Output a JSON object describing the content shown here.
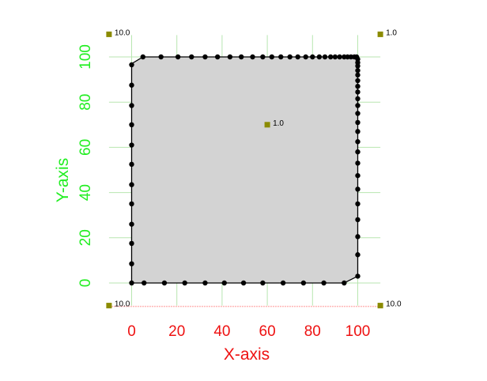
{
  "chart_data": {
    "type": "scatter",
    "title": "",
    "xlabel": "X-axis",
    "ylabel": "Y-axis",
    "xlim": [
      -10,
      110
    ],
    "ylim": [
      -10,
      110
    ],
    "xticks": [
      "0",
      "20",
      "40",
      "60",
      "80",
      "100"
    ],
    "yticks": [
      "0",
      "20",
      "40",
      "60",
      "80",
      "100"
    ],
    "grid": true,
    "colors": {
      "fill": "#d3d3d3",
      "outline": "#000000",
      "points": "#000000",
      "markers": "#8b8b00",
      "grid": "#b8e6b0",
      "x_text": "#ee1111",
      "y_text": "#22ee22",
      "bottom_axis": "#ffb4b4"
    },
    "boundary_x": [
      0,
      0,
      5,
      100,
      100,
      94,
      0
    ],
    "boundary_y": [
      0,
      97,
      100,
      100,
      3,
      0,
      0
    ],
    "points": [
      {
        "x": 0,
        "y": 0
      },
      {
        "x": 0,
        "y": 8.5
      },
      {
        "x": 0,
        "y": 17.5
      },
      {
        "x": 0,
        "y": 26
      },
      {
        "x": 0,
        "y": 35
      },
      {
        "x": 0,
        "y": 43.5
      },
      {
        "x": 0,
        "y": 52.5
      },
      {
        "x": 0,
        "y": 61
      },
      {
        "x": 0,
        "y": 70
      },
      {
        "x": 0,
        "y": 78.5
      },
      {
        "x": 0,
        "y": 87.5
      },
      {
        "x": 0,
        "y": 96.5
      },
      {
        "x": 5,
        "y": 100
      },
      {
        "x": 13,
        "y": 100
      },
      {
        "x": 20.5,
        "y": 100
      },
      {
        "x": 26.5,
        "y": 100
      },
      {
        "x": 32.5,
        "y": 100
      },
      {
        "x": 38,
        "y": 100
      },
      {
        "x": 43.5,
        "y": 100
      },
      {
        "x": 48.5,
        "y": 100
      },
      {
        "x": 53.5,
        "y": 100
      },
      {
        "x": 58,
        "y": 100
      },
      {
        "x": 62,
        "y": 100
      },
      {
        "x": 66,
        "y": 100
      },
      {
        "x": 70,
        "y": 100
      },
      {
        "x": 73.5,
        "y": 100
      },
      {
        "x": 77,
        "y": 100
      },
      {
        "x": 80,
        "y": 100
      },
      {
        "x": 83,
        "y": 100
      },
      {
        "x": 85.5,
        "y": 100
      },
      {
        "x": 88,
        "y": 100
      },
      {
        "x": 90,
        "y": 100
      },
      {
        "x": 92,
        "y": 100
      },
      {
        "x": 94,
        "y": 100
      },
      {
        "x": 95.5,
        "y": 100
      },
      {
        "x": 97,
        "y": 100
      },
      {
        "x": 98.5,
        "y": 100
      },
      {
        "x": 99.5,
        "y": 100
      },
      {
        "x": 100,
        "y": 99
      },
      {
        "x": 100,
        "y": 97.5
      },
      {
        "x": 100,
        "y": 96
      },
      {
        "x": 100,
        "y": 94
      },
      {
        "x": 100,
        "y": 92
      },
      {
        "x": 100,
        "y": 89.5
      },
      {
        "x": 100,
        "y": 87
      },
      {
        "x": 100,
        "y": 84.5
      },
      {
        "x": 100,
        "y": 81.5
      },
      {
        "x": 100,
        "y": 78.5
      },
      {
        "x": 100,
        "y": 75
      },
      {
        "x": 100,
        "y": 71
      },
      {
        "x": 100,
        "y": 67
      },
      {
        "x": 100,
        "y": 62.5
      },
      {
        "x": 100,
        "y": 58
      },
      {
        "x": 100,
        "y": 53
      },
      {
        "x": 100,
        "y": 47.5
      },
      {
        "x": 100,
        "y": 41.5
      },
      {
        "x": 100,
        "y": 35
      },
      {
        "x": 100,
        "y": 28
      },
      {
        "x": 100,
        "y": 20.5
      },
      {
        "x": 100,
        "y": 12.5
      },
      {
        "x": 100,
        "y": 3
      },
      {
        "x": 94,
        "y": 0
      },
      {
        "x": 85,
        "y": 0
      },
      {
        "x": 76,
        "y": 0
      },
      {
        "x": 67,
        "y": 0
      },
      {
        "x": 58,
        "y": 0
      },
      {
        "x": 49.5,
        "y": 0
      },
      {
        "x": 41,
        "y": 0
      },
      {
        "x": 32.5,
        "y": 0
      },
      {
        "x": 23.5,
        "y": 0
      },
      {
        "x": 14.5,
        "y": 0
      },
      {
        "x": 5.5,
        "y": 0
      }
    ],
    "markers": [
      {
        "x": -10,
        "y": 110,
        "label": "10.0"
      },
      {
        "x": 110,
        "y": 110,
        "label": "1.0"
      },
      {
        "x": 60,
        "y": 70,
        "label": "1.0"
      },
      {
        "x": -10,
        "y": -10,
        "label": "10.0"
      },
      {
        "x": 110,
        "y": -10,
        "label": "10.0"
      }
    ]
  }
}
